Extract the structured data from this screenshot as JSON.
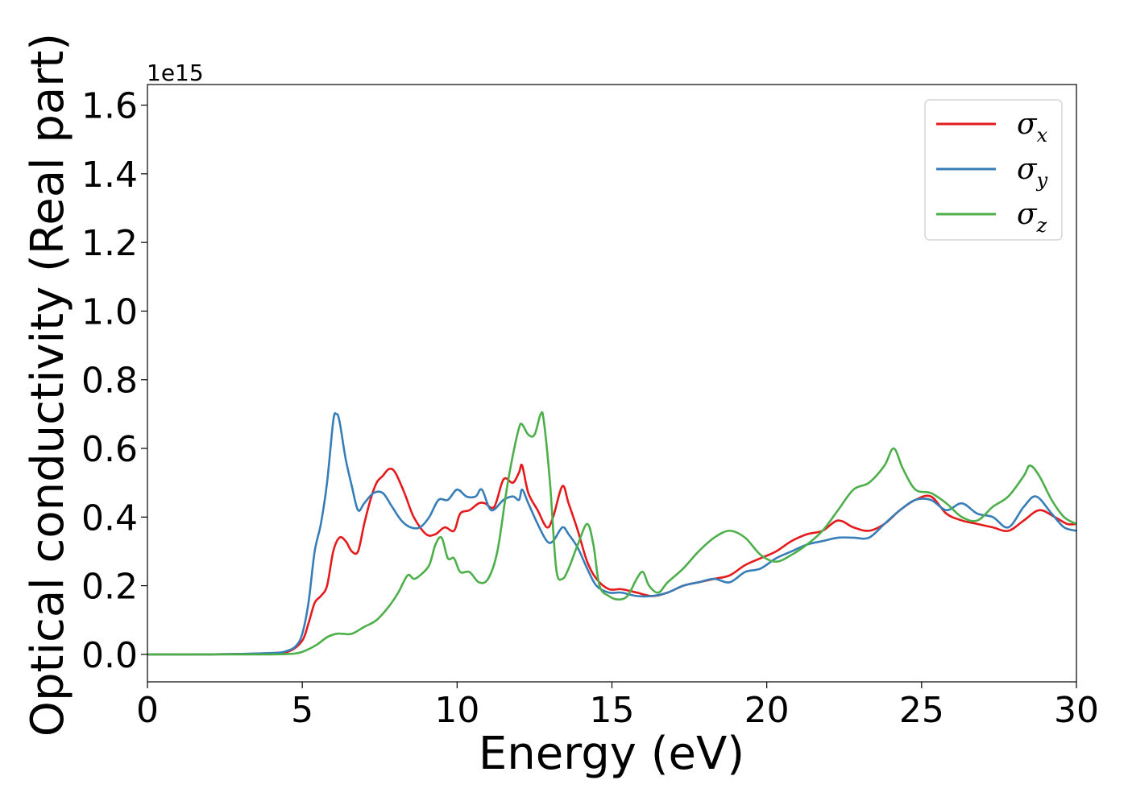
{
  "chart_data": {
    "type": "line",
    "xlabel": "Energy (eV)",
    "ylabel": "Optical conductivity (Real part)",
    "y_offset_label": "1e15",
    "xlim": [
      0,
      30
    ],
    "ylim": [
      -0.08,
      1.66
    ],
    "x_ticks": [
      0,
      5,
      10,
      15,
      20,
      25,
      30
    ],
    "x_tick_labels": [
      "0",
      "5",
      "10",
      "15",
      "20",
      "25",
      "30"
    ],
    "y_ticks": [
      0.0,
      0.2,
      0.4,
      0.6,
      0.8,
      1.0,
      1.2,
      1.4,
      1.6
    ],
    "y_tick_labels": [
      "0.0",
      "0.2",
      "0.4",
      "0.6",
      "0.8",
      "1.0",
      "1.2",
      "1.4",
      "1.6"
    ],
    "grid": false,
    "legend_position": "top-right",
    "series": [
      {
        "name": "σ",
        "subscript": "x",
        "color": "#e41a1c",
        "x": [
          0,
          2,
          4,
          4.6,
          5.0,
          5.2,
          5.4,
          5.6,
          5.8,
          6.0,
          6.2,
          6.4,
          6.6,
          6.8,
          7.0,
          7.2,
          7.4,
          7.6,
          7.8,
          8.0,
          8.3,
          8.6,
          9.0,
          9.3,
          9.6,
          9.9,
          10.1,
          10.4,
          10.7,
          10.9,
          11.2,
          11.5,
          11.8,
          12.0,
          12.1,
          12.3,
          12.6,
          12.9,
          13.1,
          13.4,
          13.6,
          13.9,
          14.2,
          14.5,
          14.9,
          15.3,
          15.8,
          16.3,
          16.8,
          17.3,
          17.8,
          18.3,
          18.8,
          19.3,
          19.8,
          20.3,
          20.8,
          21.3,
          21.8,
          22.3,
          22.8,
          23.3,
          23.8,
          24.3,
          24.8,
          25.3,
          25.8,
          26.3,
          26.8,
          27.3,
          27.8,
          28.3,
          28.8,
          29.3,
          29.7,
          30.0
        ],
        "y": [
          0.0,
          0.0,
          0.003,
          0.01,
          0.04,
          0.09,
          0.15,
          0.17,
          0.2,
          0.3,
          0.34,
          0.33,
          0.3,
          0.3,
          0.38,
          0.45,
          0.5,
          0.52,
          0.54,
          0.53,
          0.47,
          0.4,
          0.35,
          0.35,
          0.37,
          0.36,
          0.41,
          0.42,
          0.44,
          0.44,
          0.43,
          0.51,
          0.5,
          0.53,
          0.55,
          0.47,
          0.42,
          0.37,
          0.4,
          0.49,
          0.44,
          0.36,
          0.27,
          0.22,
          0.19,
          0.19,
          0.18,
          0.17,
          0.18,
          0.2,
          0.21,
          0.22,
          0.23,
          0.26,
          0.28,
          0.3,
          0.33,
          0.35,
          0.36,
          0.39,
          0.37,
          0.36,
          0.38,
          0.42,
          0.45,
          0.46,
          0.41,
          0.39,
          0.38,
          0.37,
          0.36,
          0.39,
          0.42,
          0.4,
          0.38,
          0.38
        ]
      },
      {
        "name": "σ",
        "subscript": "y",
        "color": "#377eb8",
        "x": [
          0,
          2,
          4,
          4.5,
          4.8,
          5.0,
          5.2,
          5.4,
          5.6,
          5.8,
          6.0,
          6.1,
          6.2,
          6.4,
          6.6,
          6.8,
          7.0,
          7.3,
          7.6,
          7.9,
          8.2,
          8.5,
          8.8,
          9.1,
          9.4,
          9.7,
          10.0,
          10.3,
          10.6,
          10.8,
          11.1,
          11.5,
          11.8,
          12.0,
          12.1,
          12.3,
          12.6,
          12.9,
          13.1,
          13.4,
          13.6,
          13.9,
          14.2,
          14.5,
          14.9,
          15.3,
          15.8,
          16.3,
          16.8,
          17.3,
          17.8,
          18.3,
          18.8,
          19.3,
          19.8,
          20.3,
          20.8,
          21.3,
          21.8,
          22.3,
          22.8,
          23.3,
          23.8,
          24.3,
          24.8,
          25.3,
          25.8,
          26.3,
          26.8,
          27.3,
          27.8,
          28.3,
          28.7,
          29.2,
          29.6,
          30.0
        ],
        "y": [
          0.0,
          0.0,
          0.004,
          0.01,
          0.025,
          0.06,
          0.15,
          0.3,
          0.38,
          0.5,
          0.68,
          0.7,
          0.68,
          0.57,
          0.49,
          0.42,
          0.44,
          0.47,
          0.47,
          0.43,
          0.39,
          0.37,
          0.37,
          0.4,
          0.45,
          0.45,
          0.48,
          0.46,
          0.46,
          0.48,
          0.42,
          0.45,
          0.46,
          0.45,
          0.48,
          0.44,
          0.38,
          0.33,
          0.33,
          0.37,
          0.35,
          0.31,
          0.25,
          0.2,
          0.18,
          0.18,
          0.17,
          0.17,
          0.18,
          0.2,
          0.21,
          0.22,
          0.21,
          0.24,
          0.25,
          0.28,
          0.3,
          0.32,
          0.33,
          0.34,
          0.34,
          0.34,
          0.38,
          0.42,
          0.45,
          0.45,
          0.42,
          0.44,
          0.41,
          0.4,
          0.37,
          0.43,
          0.46,
          0.41,
          0.37,
          0.36
        ]
      },
      {
        "name": "σ",
        "subscript": "z",
        "color": "#4daf4a",
        "x": [
          0,
          2,
          4,
          4.8,
          5.2,
          5.5,
          5.8,
          6.1,
          6.3,
          6.6,
          7.0,
          7.4,
          7.8,
          8.1,
          8.4,
          8.6,
          8.8,
          9.1,
          9.3,
          9.5,
          9.7,
          9.9,
          10.1,
          10.4,
          10.7,
          11.0,
          11.3,
          11.6,
          11.8,
          12.0,
          12.1,
          12.3,
          12.5,
          12.7,
          12.8,
          13.0,
          13.2,
          13.4,
          13.6,
          13.9,
          14.2,
          14.4,
          14.6,
          14.9,
          15.2,
          15.5,
          15.8,
          16.0,
          16.2,
          16.5,
          16.8,
          17.3,
          17.8,
          18.3,
          18.8,
          19.3,
          19.8,
          20.3,
          20.8,
          21.3,
          21.8,
          22.3,
          22.8,
          23.3,
          23.8,
          24.1,
          24.4,
          24.8,
          25.3,
          25.8,
          26.3,
          26.8,
          27.3,
          27.8,
          28.3,
          28.5,
          28.8,
          29.2,
          29.6,
          30.0
        ],
        "y": [
          0.0,
          0.0,
          0.0,
          0.003,
          0.015,
          0.03,
          0.05,
          0.06,
          0.06,
          0.06,
          0.08,
          0.1,
          0.14,
          0.18,
          0.23,
          0.22,
          0.23,
          0.26,
          0.32,
          0.34,
          0.28,
          0.28,
          0.24,
          0.24,
          0.21,
          0.22,
          0.3,
          0.48,
          0.58,
          0.66,
          0.67,
          0.64,
          0.64,
          0.7,
          0.68,
          0.5,
          0.25,
          0.22,
          0.25,
          0.32,
          0.38,
          0.32,
          0.2,
          0.17,
          0.16,
          0.17,
          0.22,
          0.24,
          0.2,
          0.18,
          0.21,
          0.25,
          0.3,
          0.34,
          0.36,
          0.34,
          0.29,
          0.27,
          0.29,
          0.32,
          0.36,
          0.42,
          0.48,
          0.5,
          0.55,
          0.6,
          0.54,
          0.48,
          0.47,
          0.44,
          0.4,
          0.39,
          0.43,
          0.46,
          0.52,
          0.55,
          0.52,
          0.45,
          0.4,
          0.38
        ]
      }
    ]
  }
}
